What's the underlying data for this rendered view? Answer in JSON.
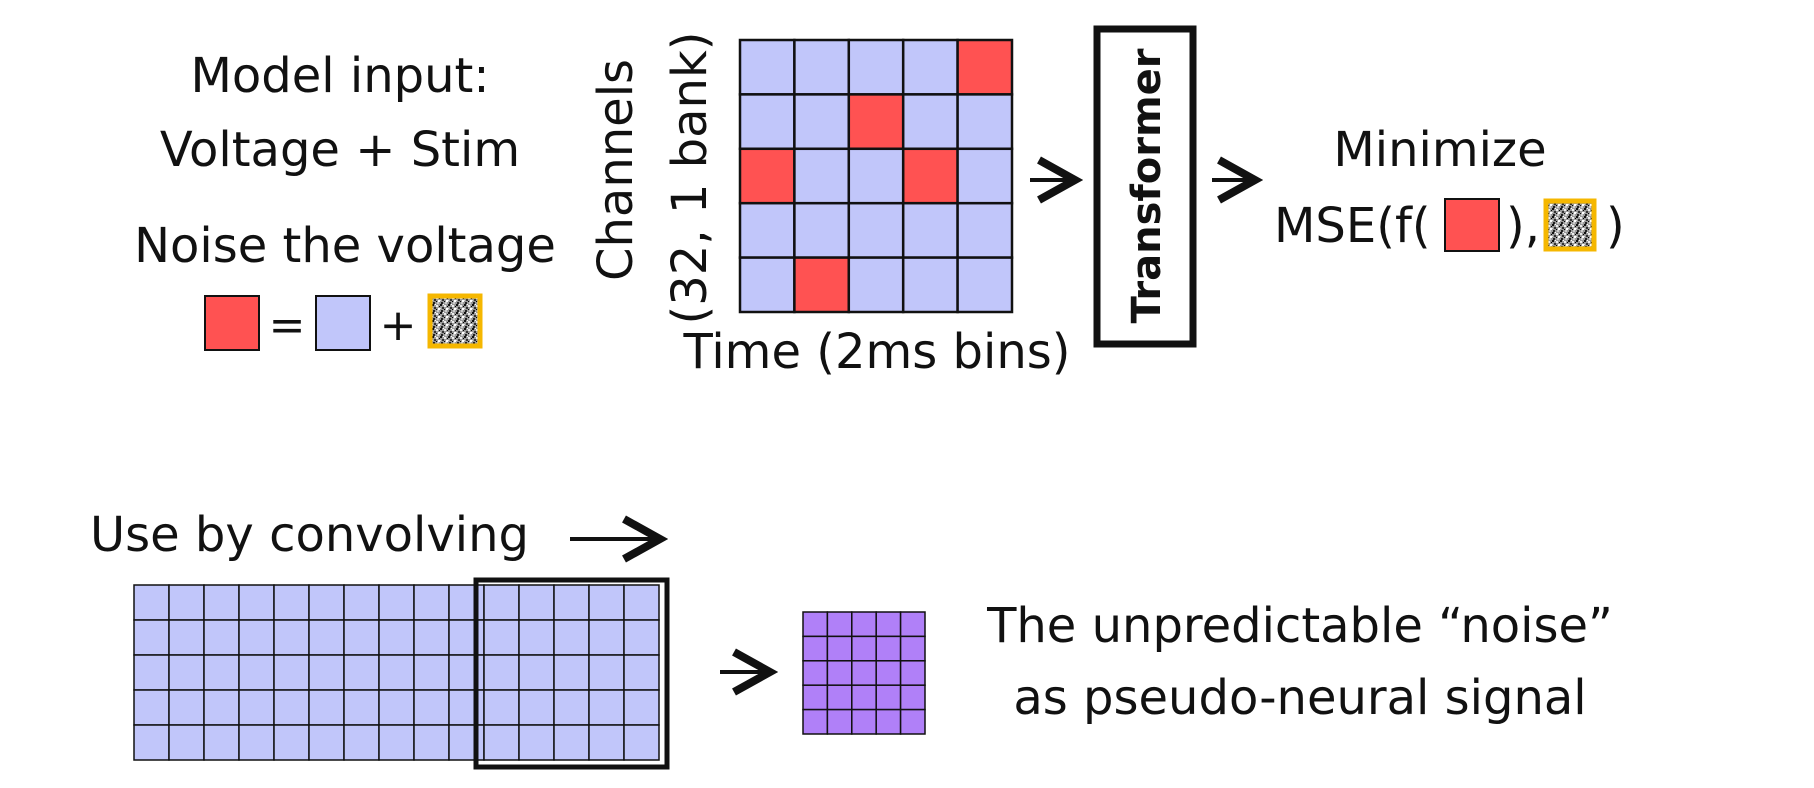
{
  "top": {
    "model_input_line1": "Model input:",
    "model_input_line2": "Voltage + Stim",
    "noise_title": "Noise the voltage",
    "equals": "=",
    "plus": "+",
    "y_axis_line1": "Channels",
    "y_axis_line2": "(32, 1 bank)",
    "x_axis": "Time (2ms bins)",
    "transformer_label": "Transformer",
    "minimize_line1": "Minimize",
    "mse_prefix": "MSE(f(",
    "mse_middle": "),",
    "mse_suffix": ")",
    "grid": {
      "rows": 5,
      "cols": 5,
      "highlighted": [
        [
          0,
          4
        ],
        [
          1,
          2
        ],
        [
          2,
          0
        ],
        [
          2,
          3
        ],
        [
          4,
          1
        ]
      ]
    }
  },
  "bottom": {
    "title": "Use by convolving",
    "result_line1": "The unpredictable “noise”",
    "result_line2": "as pseudo-neural signal",
    "long_grid": {
      "rows": 5,
      "cols": 15,
      "window_cols": 5
    },
    "output_grid": {
      "rows": 5,
      "cols": 5
    }
  },
  "colors": {
    "voltage": "#c1c6fa",
    "stim": "#ff5252",
    "noise_border": "#f5b700",
    "output": "#b080f8",
    "stroke": "#111111"
  }
}
